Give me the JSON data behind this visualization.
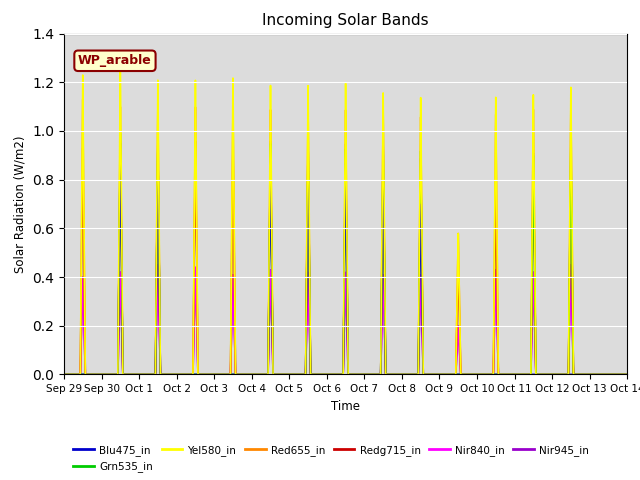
{
  "title": "Incoming Solar Bands",
  "ylabel": "Solar Radiation (W/m2)",
  "xlabel": "Time",
  "annotation": "WP_arable",
  "ylim": [
    0,
    1.4
  ],
  "background_color": "#dcdcdc",
  "series": {
    "Blu475_in": {
      "color": "#0000cc",
      "lw": 1.2
    },
    "Grn535_in": {
      "color": "#00cc00",
      "lw": 1.2
    },
    "Yel580_in": {
      "color": "#ffff00",
      "lw": 1.2
    },
    "Red655_in": {
      "color": "#ff8800",
      "lw": 1.2
    },
    "Redg715_in": {
      "color": "#cc0000",
      "lw": 1.2
    },
    "Nir840_in": {
      "color": "#ff00ff",
      "lw": 1.2
    },
    "Nir945_in": {
      "color": "#9900cc",
      "lw": 1.2
    }
  },
  "peaks": [
    {
      "day": 0.5,
      "yel": 1.23,
      "red": 1.13,
      "rdg": 0.93,
      "grn": 0.0,
      "blu": 0.0,
      "nir840": 0.4,
      "nir945": 0.4
    },
    {
      "day": 1.5,
      "yel": 1.3,
      "red": 1.1,
      "rdg": 0.96,
      "grn": 0.99,
      "blu": 0.95,
      "nir840": 0.42,
      "nir945": 0.42
    },
    {
      "day": 2.5,
      "yel": 1.21,
      "red": 1.1,
      "rdg": 0.96,
      "grn": 0.95,
      "blu": 0.93,
      "nir840": 0.45,
      "nir945": 0.45
    },
    {
      "day": 3.5,
      "yel": 1.21,
      "red": 1.1,
      "rdg": 0.96,
      "grn": 0.0,
      "blu": 0.0,
      "nir840": 0.44,
      "nir945": 0.44
    },
    {
      "day": 4.5,
      "yel": 1.22,
      "red": 1.1,
      "rdg": 0.96,
      "grn": 0.0,
      "blu": 0.0,
      "nir840": 0.41,
      "nir945": 0.41
    },
    {
      "day": 5.5,
      "yel": 1.19,
      "red": 1.09,
      "rdg": 0.96,
      "grn": 0.95,
      "blu": 0.88,
      "nir840": 0.43,
      "nir945": 0.43
    },
    {
      "day": 6.5,
      "yel": 1.19,
      "red": 1.09,
      "rdg": 0.96,
      "grn": 0.95,
      "blu": 0.88,
      "nir840": 0.42,
      "nir945": 0.42
    },
    {
      "day": 7.5,
      "yel": 1.2,
      "red": 1.09,
      "rdg": 0.95,
      "grn": 0.93,
      "blu": 0.87,
      "nir840": 0.42,
      "nir945": 0.42
    },
    {
      "day": 8.5,
      "yel": 1.16,
      "red": 1.08,
      "rdg": 0.95,
      "grn": 0.93,
      "blu": 0.86,
      "nir840": 0.41,
      "nir945": 0.41
    },
    {
      "day": 9.5,
      "yel": 1.14,
      "red": 1.06,
      "rdg": 0.89,
      "grn": 0.92,
      "blu": 0.7,
      "nir840": 0.41,
      "nir945": 0.41
    },
    {
      "day": 10.5,
      "yel": 0.58,
      "red": 0.58,
      "rdg": 0.45,
      "grn": 0.0,
      "blu": 0.0,
      "nir840": 0.2,
      "nir945": 0.2
    },
    {
      "day": 11.5,
      "yel": 1.14,
      "red": 1.07,
      "rdg": 0.76,
      "grn": 0.0,
      "blu": 0.0,
      "nir840": 0.43,
      "nir945": 0.43
    },
    {
      "day": 12.5,
      "yel": 1.15,
      "red": 1.09,
      "rdg": 0.91,
      "grn": 0.9,
      "blu": 0.0,
      "nir840": 0.42,
      "nir945": 0.42
    },
    {
      "day": 13.5,
      "yel": 1.18,
      "red": 1.1,
      "rdg": 0.91,
      "grn": 0.95,
      "blu": 0.0,
      "nir840": 0.45,
      "nir945": 0.45
    }
  ],
  "xtick_labels": [
    "Sep 29",
    "Sep 30",
    "Oct 1",
    "Oct 2",
    "Oct 3",
    "Oct 4",
    "Oct 5",
    "Oct 6",
    "Oct 7",
    "Oct 8",
    "Oct 9",
    "Oct 10",
    "Oct 11",
    "Oct 12",
    "Oct 13",
    "Oct 14"
  ],
  "xtick_positions": [
    0,
    1,
    2,
    3,
    4,
    5,
    6,
    7,
    8,
    9,
    10,
    11,
    12,
    13,
    14,
    15
  ],
  "num_days": 15
}
